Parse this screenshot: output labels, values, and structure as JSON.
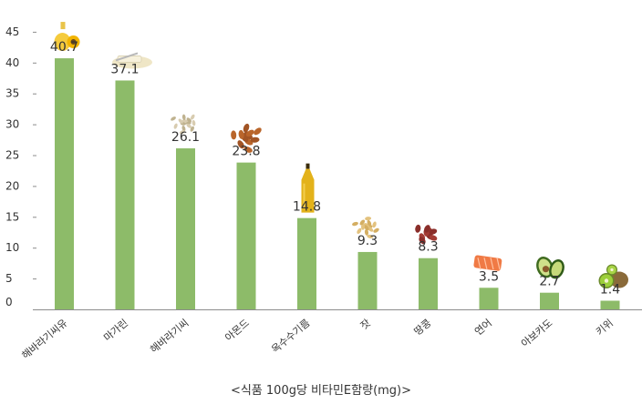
{
  "chart_data": {
    "type": "bar",
    "categories": [
      "해바라기씨유",
      "마가린",
      "해바라기씨",
      "아몬드",
      "옥수수기름",
      "잣",
      "땅콩",
      "연어",
      "아보카도",
      "키위"
    ],
    "values": [
      40.7,
      37.1,
      26.1,
      23.8,
      14.8,
      9.3,
      8.3,
      3.5,
      2.7,
      1.4
    ],
    "value_labels": [
      "40.7",
      "37.1",
      "26.1",
      "23.8",
      "14.8",
      "9.3",
      "8.3",
      "3.5",
      "2.7",
      "1.4"
    ],
    "y_ticks": [
      "0",
      "5",
      "10",
      "15",
      "20",
      "25",
      "30",
      "35",
      "40",
      "45"
    ],
    "ylim": [
      0,
      45
    ],
    "grid": false,
    "legend": "none",
    "title": "",
    "xlabel": "",
    "ylabel": "",
    "caption": "<식품 100g당 비타민E함량(mg)>",
    "icons": [
      "sunflower-oil-bottle-icon",
      "margarine-icon",
      "sunflower-seeds-icon",
      "almonds-icon",
      "corn-oil-bottle-icon",
      "pine-nuts-icon",
      "peanuts-icon",
      "salmon-icon",
      "avocado-icon",
      "kiwi-icon"
    ]
  },
  "colors": {
    "bar": "#8dbb69",
    "axis": "#8c8c8c",
    "text": "#333333"
  }
}
